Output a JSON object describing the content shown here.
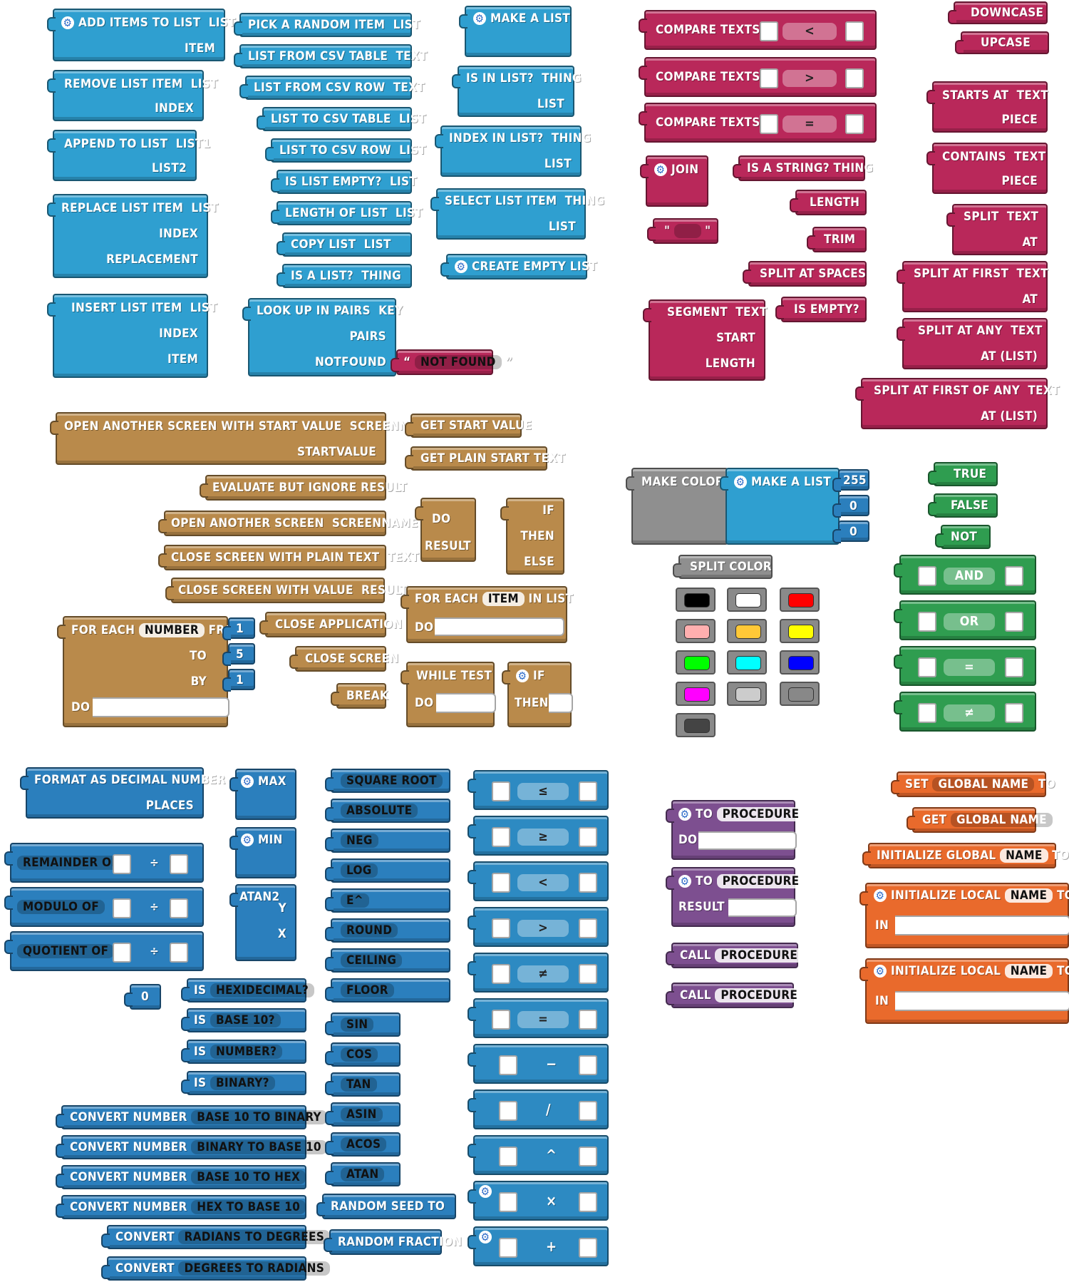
{
  "lists": {
    "add_items": [
      "ADD ITEMS TO LIST",
      "LIST",
      "ITEM"
    ],
    "remove_item": [
      "REMOVE LIST ITEM",
      "LIST",
      "INDEX"
    ],
    "append": [
      "APPEND TO LIST",
      "LIST1",
      "LIST2"
    ],
    "replace": [
      "REPLACE LIST ITEM",
      "LIST",
      "INDEX",
      "REPLACEMENT"
    ],
    "insert": [
      "INSERT LIST ITEM",
      "LIST",
      "INDEX",
      "ITEM"
    ],
    "column2": [
      [
        "PICK A RANDOM ITEM",
        "LIST"
      ],
      [
        "LIST FROM CSV TABLE",
        "TEXT"
      ],
      [
        "LIST FROM CSV ROW",
        "TEXT"
      ],
      [
        "LIST TO CSV TABLE",
        "LIST"
      ],
      [
        "LIST TO CSV ROW",
        "LIST"
      ],
      [
        "IS LIST EMPTY?",
        "LIST"
      ],
      [
        "LENGTH OF LIST",
        "LIST"
      ],
      [
        "COPY LIST",
        "LIST"
      ],
      [
        "IS A LIST?",
        "THING"
      ]
    ],
    "lookup": [
      "LOOK UP IN PAIRS",
      "KEY",
      "PAIRS",
      "NOTFOUND"
    ],
    "not_found": "NOT FOUND",
    "make_list": "MAKE A LIST",
    "is_in_list": [
      "IS IN LIST?",
      "THING",
      "LIST"
    ],
    "index_in_list": [
      "INDEX IN LIST?",
      "THING",
      "LIST"
    ],
    "select_item": [
      "SELECT LIST ITEM",
      "THING",
      "LIST"
    ],
    "create_empty": "CREATE EMPTY LIST"
  },
  "text": {
    "compare": [
      "COMPARE TEXTS",
      "COMPARE TEXTS",
      "COMPARE TEXTS"
    ],
    "compare_ops": [
      "<",
      ">",
      "="
    ],
    "downcase": "DOWNCASE",
    "upcase": "UPCASE",
    "starts_at": [
      "STARTS AT",
      "TEXT",
      "PIECE"
    ],
    "contains": [
      "CONTAINS",
      "TEXT",
      "PIECE"
    ],
    "join": "JOIN",
    "quote_l": "\"",
    "quote_r": "\"",
    "is_string": [
      "IS A STRING?",
      "THING"
    ],
    "length": "LENGTH",
    "trim": "TRIM",
    "split_spaces": "SPLIT AT SPACES",
    "is_empty": "IS EMPTY?",
    "split": [
      "SPLIT",
      "TEXT",
      "AT"
    ],
    "split_first": [
      "SPLIT AT FIRST",
      "TEXT",
      "AT"
    ],
    "split_any": [
      "SPLIT AT ANY",
      "TEXT",
      "AT (LIST)"
    ],
    "split_first_any": [
      "SPLIT AT FIRST OF ANY",
      "TEXT",
      "AT (LIST)"
    ],
    "segment": [
      "SEGMENT",
      "TEXT",
      "START",
      "LENGTH"
    ]
  },
  "control": {
    "open_start_value": [
      "OPEN ANOTHER SCREEN WITH START VALUE",
      "SCREENNAME",
      "STARTVALUE"
    ],
    "get_start_value": "GET START VALUE",
    "get_plain_start": "GET PLAIN START TEXT",
    "evaluate": "EVALUATE BUT IGNORE RESULT",
    "open_screen": [
      "OPEN ANOTHER SCREEN",
      "SCREENNAME"
    ],
    "close_plain": [
      "CLOSE SCREEN WITH PLAIN TEXT",
      "TEXT"
    ],
    "close_value": [
      "CLOSE SCREEN WITH VALUE",
      "RESULT"
    ],
    "do_result": [
      "DO",
      "RESULT"
    ],
    "if_then_else": [
      "IF",
      "THEN",
      "ELSE"
    ],
    "for_each_item": [
      "FOR EACH",
      "ITEM",
      "IN LIST",
      "DO"
    ],
    "for_each_number": [
      "FOR EACH",
      "NUMBER",
      "FROM",
      "TO",
      "BY",
      "DO"
    ],
    "for_values": [
      "1",
      "5",
      "1"
    ],
    "close_app": "CLOSE APPLICATION",
    "close_screen": "CLOSE SCREEN",
    "break": "BREAK",
    "while": [
      "WHILE",
      "TEST",
      "DO"
    ],
    "if_then": [
      "IF",
      "THEN"
    ]
  },
  "colors": {
    "make_color": "MAKE COLOR",
    "make_list": "MAKE A LIST",
    "values": [
      "255",
      "0",
      "0"
    ],
    "split_color": "SPLIT COLOR",
    "swatches": [
      "#000000",
      "#ffffff",
      "#ff0000",
      "#ffafaf",
      "#ffc837",
      "#ffff00",
      "#00ff00",
      "#00ffff",
      "#0000ff",
      "#ff00ff",
      "#cccccc",
      "#888888",
      "#444444"
    ]
  },
  "logic": {
    "true": "TRUE",
    "false": "FALSE",
    "not": "NOT",
    "and": "AND",
    "or": "OR",
    "eq": "=",
    "neq": "≠"
  },
  "math": {
    "format_decimal": [
      "FORMAT AS DECIMAL NUMBER",
      "PLACES"
    ],
    "max": "MAX",
    "min": "MIN",
    "atan2": [
      "ATAN2",
      "Y",
      "X"
    ],
    "remainder": [
      "REMAINDER OF",
      "÷"
    ],
    "modulo": [
      "MODULO OF",
      "÷"
    ],
    "quotient": [
      "QUOTIENT OF",
      "÷"
    ],
    "zero": "0",
    "is_checks": [
      [
        "IS",
        "HEXIDECIMAL?"
      ],
      [
        "IS",
        "BASE 10?"
      ],
      [
        "IS",
        "NUMBER?"
      ],
      [
        "IS",
        "BINARY?"
      ]
    ],
    "convert_number": [
      [
        "CONVERT NUMBER",
        "BASE 10 TO BINARY"
      ],
      [
        "CONVERT NUMBER",
        "BINARY TO BASE 10"
      ],
      [
        "CONVERT NUMBER",
        "BASE 10 TO HEX"
      ],
      [
        "CONVERT NUMBER",
        "HEX TO BASE 10"
      ]
    ],
    "convert_angle": [
      [
        "CONVERT",
        "RADIANS TO DEGREES"
      ],
      [
        "CONVERT",
        "DEGREES TO RADIANS"
      ]
    ],
    "unary_wide": [
      "SQUARE ROOT",
      "ABSOLUTE",
      "NEG",
      "LOG",
      "E^",
      "ROUND",
      "CEILING",
      "FLOOR"
    ],
    "trig": [
      "SIN",
      "COS",
      "TAN",
      "ASIN",
      "ACOS",
      "ATAN"
    ],
    "random_seed": "RANDOM SEED TO",
    "random_fraction": "RANDOM FRACTION",
    "compare_ops": [
      "≤",
      "≥",
      "<",
      ">",
      "≠",
      "="
    ],
    "arith_ops": [
      "−",
      "/",
      "^",
      "×",
      "+"
    ]
  },
  "procedures": {
    "to_do": [
      "TO",
      "PROCEDURE",
      "DO"
    ],
    "to_result": [
      "TO",
      "PROCEDURE",
      "RESULT"
    ],
    "call1": [
      "CALL",
      "PROCEDURE"
    ],
    "call2": [
      "CALL",
      "PROCEDURE"
    ]
  },
  "variables": {
    "set": [
      "SET",
      "GLOBAL NAME",
      "TO"
    ],
    "get": [
      "GET",
      "GLOBAL NAME"
    ],
    "init_global": [
      "INITIALIZE GLOBAL",
      "NAME",
      "TO"
    ],
    "init_local1": [
      "INITIALIZE LOCAL",
      "NAME",
      "TO",
      "IN"
    ],
    "init_local2": [
      "INITIALIZE LOCAL",
      "NAME",
      "TO",
      "IN"
    ]
  }
}
